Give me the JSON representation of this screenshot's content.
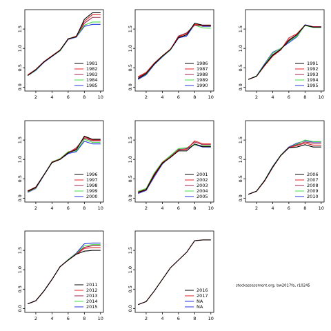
{
  "chart_data": [
    {
      "type": "line",
      "x": [
        1,
        2,
        3,
        4,
        5,
        6,
        7,
        8,
        9,
        10
      ],
      "xlim": [
        0.64,
        10.36
      ],
      "ylim": [
        -0.1,
        2.0
      ],
      "xticks": [
        2,
        4,
        6,
        8,
        10
      ],
      "yticks": [
        {
          "value": 0,
          "label": "0.0"
        },
        0.5,
        {
          "value": 1,
          "label": "1.0"
        },
        1.5
      ],
      "legend": "bottomright",
      "series": [
        {
          "name": "1981",
          "color": "#000000",
          "values": [
            0.3,
            0.45,
            0.65,
            0.8,
            0.95,
            1.25,
            1.3,
            1.75,
            1.92,
            1.92
          ]
        },
        {
          "name": "1982",
          "color": "#dd2222",
          "values": [
            0.32,
            0.46,
            0.66,
            0.81,
            0.96,
            1.24,
            1.32,
            1.7,
            1.87,
            1.87
          ]
        },
        {
          "name": "1983",
          "color": "#a0224a",
          "values": [
            0.31,
            0.45,
            0.65,
            0.8,
            0.95,
            1.24,
            1.31,
            1.65,
            1.8,
            1.8
          ]
        },
        {
          "name": "1984",
          "color": "#44dd44",
          "values": [
            0.3,
            0.44,
            0.65,
            0.8,
            0.94,
            1.24,
            1.3,
            1.6,
            1.68,
            1.68
          ]
        },
        {
          "name": "1985",
          "color": "#2233dd",
          "values": [
            0.3,
            0.43,
            0.64,
            0.79,
            0.94,
            1.23,
            1.29,
            1.57,
            1.62,
            1.62
          ]
        }
      ]
    },
    {
      "type": "line",
      "x": [
        1,
        2,
        3,
        4,
        5,
        6,
        7,
        8,
        9,
        10
      ],
      "xlim": [
        0.64,
        10.36
      ],
      "ylim": [
        -0.1,
        2.0
      ],
      "xticks": [
        2,
        4,
        6,
        8,
        10
      ],
      "yticks": [
        {
          "value": 0,
          "label": "0.0"
        },
        0.5,
        {
          "value": 1,
          "label": "1.0"
        },
        1.5
      ],
      "legend": "bottomright",
      "series": [
        {
          "name": "1986",
          "color": "#000000",
          "values": [
            0.22,
            0.35,
            0.6,
            0.8,
            0.97,
            1.28,
            1.35,
            1.65,
            1.6,
            1.6
          ]
        },
        {
          "name": "1987",
          "color": "#dd2222",
          "values": [
            0.27,
            0.38,
            0.62,
            0.81,
            0.98,
            1.3,
            1.38,
            1.62,
            1.6,
            1.6
          ]
        },
        {
          "name": "1988",
          "color": "#a0224a",
          "values": [
            0.25,
            0.36,
            0.61,
            0.8,
            0.97,
            1.32,
            1.4,
            1.6,
            1.58,
            1.58
          ]
        },
        {
          "name": "1989",
          "color": "#44dd44",
          "values": [
            0.22,
            0.34,
            0.6,
            0.79,
            0.96,
            1.3,
            1.4,
            1.6,
            1.53,
            1.52
          ]
        },
        {
          "name": "1990",
          "color": "#2233dd",
          "values": [
            0.2,
            0.32,
            0.58,
            0.78,
            0.96,
            1.27,
            1.32,
            1.62,
            1.57,
            1.57
          ]
        }
      ]
    },
    {
      "type": "line",
      "x": [
        1,
        2,
        3,
        4,
        5,
        6,
        7,
        8,
        9,
        10
      ],
      "xlim": [
        0.64,
        10.36
      ],
      "ylim": [
        -0.1,
        2.0
      ],
      "xticks": [
        2,
        4,
        6,
        8,
        10
      ],
      "yticks": [
        {
          "value": 0,
          "label": "0.0"
        },
        0.5,
        {
          "value": 1,
          "label": "1.0"
        },
        1.5
      ],
      "legend": "bottomright",
      "series": [
        {
          "name": "1991",
          "color": "#000000",
          "values": [
            0.2,
            0.28,
            0.57,
            0.82,
            0.97,
            1.2,
            1.35,
            1.6,
            1.55,
            1.55
          ]
        },
        {
          "name": "1992",
          "color": "#dd2222",
          "values": [
            0.2,
            0.28,
            0.55,
            0.8,
            0.96,
            1.27,
            1.38,
            1.6,
            1.56,
            1.56
          ]
        },
        {
          "name": "1993",
          "color": "#a0224a",
          "values": [
            0.2,
            0.28,
            0.56,
            0.84,
            0.98,
            1.22,
            1.36,
            1.6,
            1.55,
            1.55
          ]
        },
        {
          "name": "1994",
          "color": "#44dd44",
          "values": [
            0.2,
            0.29,
            0.58,
            0.88,
            1.0,
            1.18,
            1.32,
            1.59,
            1.54,
            1.54
          ]
        },
        {
          "name": "1995",
          "color": "#2233dd",
          "values": [
            0.2,
            0.29,
            0.6,
            0.9,
            1.0,
            1.15,
            1.3,
            1.61,
            1.56,
            1.56
          ]
        }
      ]
    },
    {
      "type": "line",
      "x": [
        1,
        2,
        3,
        4,
        5,
        6,
        7,
        8,
        9,
        10
      ],
      "xlim": [
        0.64,
        10.36
      ],
      "ylim": [
        -0.1,
        2.0
      ],
      "xticks": [
        2,
        4,
        6,
        8,
        10
      ],
      "yticks": [
        {
          "value": 0,
          "label": "0.0"
        },
        0.5,
        {
          "value": 1,
          "label": "1.0"
        },
        1.5
      ],
      "legend": "bottomright",
      "series": [
        {
          "name": "1996",
          "color": "#000000",
          "values": [
            0.18,
            0.28,
            0.6,
            0.92,
            1.0,
            1.17,
            1.25,
            1.6,
            1.52,
            1.52
          ]
        },
        {
          "name": "1997",
          "color": "#dd2222",
          "values": [
            0.19,
            0.29,
            0.6,
            0.93,
            1.01,
            1.18,
            1.27,
            1.58,
            1.5,
            1.5
          ]
        },
        {
          "name": "1998",
          "color": "#a0224a",
          "values": [
            0.17,
            0.27,
            0.6,
            0.92,
            1.0,
            1.17,
            1.3,
            1.55,
            1.48,
            1.48
          ]
        },
        {
          "name": "1999",
          "color": "#44dd44",
          "values": [
            0.16,
            0.26,
            0.6,
            0.94,
            1.02,
            1.2,
            1.22,
            1.52,
            1.44,
            1.44
          ]
        },
        {
          "name": "2000",
          "color": "#2233dd",
          "values": [
            0.15,
            0.25,
            0.59,
            0.92,
            1.0,
            1.15,
            1.2,
            1.47,
            1.4,
            1.4
          ]
        }
      ]
    },
    {
      "type": "line",
      "x": [
        1,
        2,
        3,
        4,
        5,
        6,
        7,
        8,
        9,
        10
      ],
      "xlim": [
        0.64,
        10.36
      ],
      "ylim": [
        -0.1,
        2.0
      ],
      "xticks": [
        2,
        4,
        6,
        8,
        10
      ],
      "yticks": [
        {
          "value": 0,
          "label": "0.0"
        },
        0.5,
        {
          "value": 1,
          "label": "1.0"
        },
        1.5
      ],
      "legend": "bottomright",
      "series": [
        {
          "name": "2001",
          "color": "#000000",
          "values": [
            0.15,
            0.22,
            0.6,
            0.9,
            1.05,
            1.22,
            1.22,
            1.4,
            1.33,
            1.33
          ]
        },
        {
          "name": "2002",
          "color": "#dd2222",
          "values": [
            0.16,
            0.23,
            0.62,
            0.92,
            1.07,
            1.25,
            1.26,
            1.48,
            1.4,
            1.4
          ]
        },
        {
          "name": "2003",
          "color": "#a0224a",
          "values": [
            0.14,
            0.21,
            0.58,
            0.9,
            1.06,
            1.24,
            1.28,
            1.45,
            1.38,
            1.38
          ]
        },
        {
          "name": "2004",
          "color": "#44dd44",
          "values": [
            0.18,
            0.25,
            0.65,
            0.93,
            1.1,
            1.28,
            1.3,
            1.38,
            1.35,
            1.35
          ]
        },
        {
          "name": "2005",
          "color": "#2233dd",
          "values": [
            0.12,
            0.2,
            0.55,
            0.88,
            1.08,
            1.26,
            1.27,
            1.38,
            1.32,
            1.32
          ]
        }
      ]
    },
    {
      "type": "line",
      "x": [
        1,
        2,
        3,
        4,
        5,
        6,
        7,
        8,
        9,
        10
      ],
      "xlim": [
        0.64,
        10.36
      ],
      "ylim": [
        -0.1,
        2.0
      ],
      "xticks": [
        2,
        4,
        6,
        8,
        10
      ],
      "yticks": [
        {
          "value": 0,
          "label": "0.0"
        },
        0.5,
        {
          "value": 1,
          "label": "1.0"
        },
        1.5
      ],
      "legend": "bottomright",
      "series": [
        {
          "name": "2006",
          "color": "#000000",
          "values": [
            0.1,
            0.18,
            0.45,
            0.8,
            1.1,
            1.3,
            1.32,
            1.38,
            1.32,
            1.32
          ]
        },
        {
          "name": "2007",
          "color": "#dd2222",
          "values": [
            0.1,
            0.18,
            0.44,
            0.79,
            1.1,
            1.3,
            1.36,
            1.42,
            1.37,
            1.37
          ]
        },
        {
          "name": "2008",
          "color": "#a0224a",
          "values": [
            0.1,
            0.18,
            0.45,
            0.8,
            1.1,
            1.31,
            1.38,
            1.45,
            1.42,
            1.42
          ]
        },
        {
          "name": "2009",
          "color": "#44dd44",
          "values": [
            0.1,
            0.18,
            0.46,
            0.81,
            1.11,
            1.31,
            1.4,
            1.5,
            1.46,
            1.46
          ]
        },
        {
          "name": "2010",
          "color": "#2233dd",
          "values": [
            0.1,
            0.18,
            0.46,
            0.82,
            1.11,
            1.32,
            1.42,
            1.48,
            1.45,
            1.45
          ]
        }
      ]
    },
    {
      "type": "line",
      "x": [
        1,
        2,
        3,
        4,
        5,
        6,
        7,
        8,
        9,
        10
      ],
      "xlim": [
        0.64,
        10.36
      ],
      "ylim": [
        -0.1,
        2.0
      ],
      "xticks": [
        2,
        4,
        6,
        8,
        10
      ],
      "yticks": [
        {
          "value": 0,
          "label": "0.0"
        },
        0.5,
        {
          "value": 1,
          "label": "1.0"
        },
        1.5
      ],
      "legend": "bottomright",
      "series": [
        {
          "name": "2011",
          "color": "#000000",
          "values": [
            0.12,
            0.2,
            0.45,
            0.75,
            1.08,
            1.25,
            1.4,
            1.48,
            1.5,
            1.5
          ]
        },
        {
          "name": "2012",
          "color": "#dd2222",
          "values": [
            0.12,
            0.2,
            0.45,
            0.75,
            1.08,
            1.25,
            1.4,
            1.55,
            1.57,
            1.57
          ]
        },
        {
          "name": "2013",
          "color": "#a0224a",
          "values": [
            0.12,
            0.2,
            0.45,
            0.75,
            1.08,
            1.25,
            1.41,
            1.58,
            1.62,
            1.62
          ]
        },
        {
          "name": "2014",
          "color": "#44dd44",
          "values": [
            0.12,
            0.2,
            0.45,
            0.75,
            1.08,
            1.26,
            1.42,
            1.62,
            1.65,
            1.65
          ]
        },
        {
          "name": "2015",
          "color": "#2233dd",
          "values": [
            0.12,
            0.2,
            0.45,
            0.75,
            1.08,
            1.26,
            1.43,
            1.67,
            1.69,
            1.69
          ]
        }
      ]
    },
    {
      "type": "line",
      "x": [
        1,
        2,
        3,
        4,
        5,
        6,
        7,
        8,
        9,
        10
      ],
      "xlim": [
        0.64,
        10.36
      ],
      "ylim": [
        -0.1,
        2.0
      ],
      "xticks": [
        2,
        4,
        6,
        8,
        10
      ],
      "yticks": [
        {
          "value": 0,
          "label": "0.0"
        },
        0.5,
        {
          "value": 1,
          "label": "1.0"
        },
        1.5
      ],
      "legend": "bottomright",
      "series": [
        {
          "name": "2016",
          "color": "#000000",
          "values": [
            0.1,
            0.18,
            0.45,
            0.75,
            1.05,
            1.25,
            1.45,
            1.75,
            1.77,
            1.77
          ]
        },
        {
          "name": "2017",
          "color": "#dd2222",
          "values": [
            0.1,
            0.18,
            0.45,
            0.75,
            1.05,
            1.25,
            1.45,
            1.75,
            1.77,
            1.77
          ]
        },
        {
          "name": "NA",
          "color": "#2233dd",
          "values": [
            null,
            null,
            null,
            null,
            null,
            null,
            null,
            null,
            null,
            null
          ]
        },
        {
          "name": "NA",
          "color": "#2233dd",
          "values": [
            null,
            null,
            null,
            null,
            null,
            null,
            null,
            null,
            null,
            null
          ]
        }
      ]
    }
  ],
  "footnote": "stockassessment.org, bw2017fa, r10245"
}
